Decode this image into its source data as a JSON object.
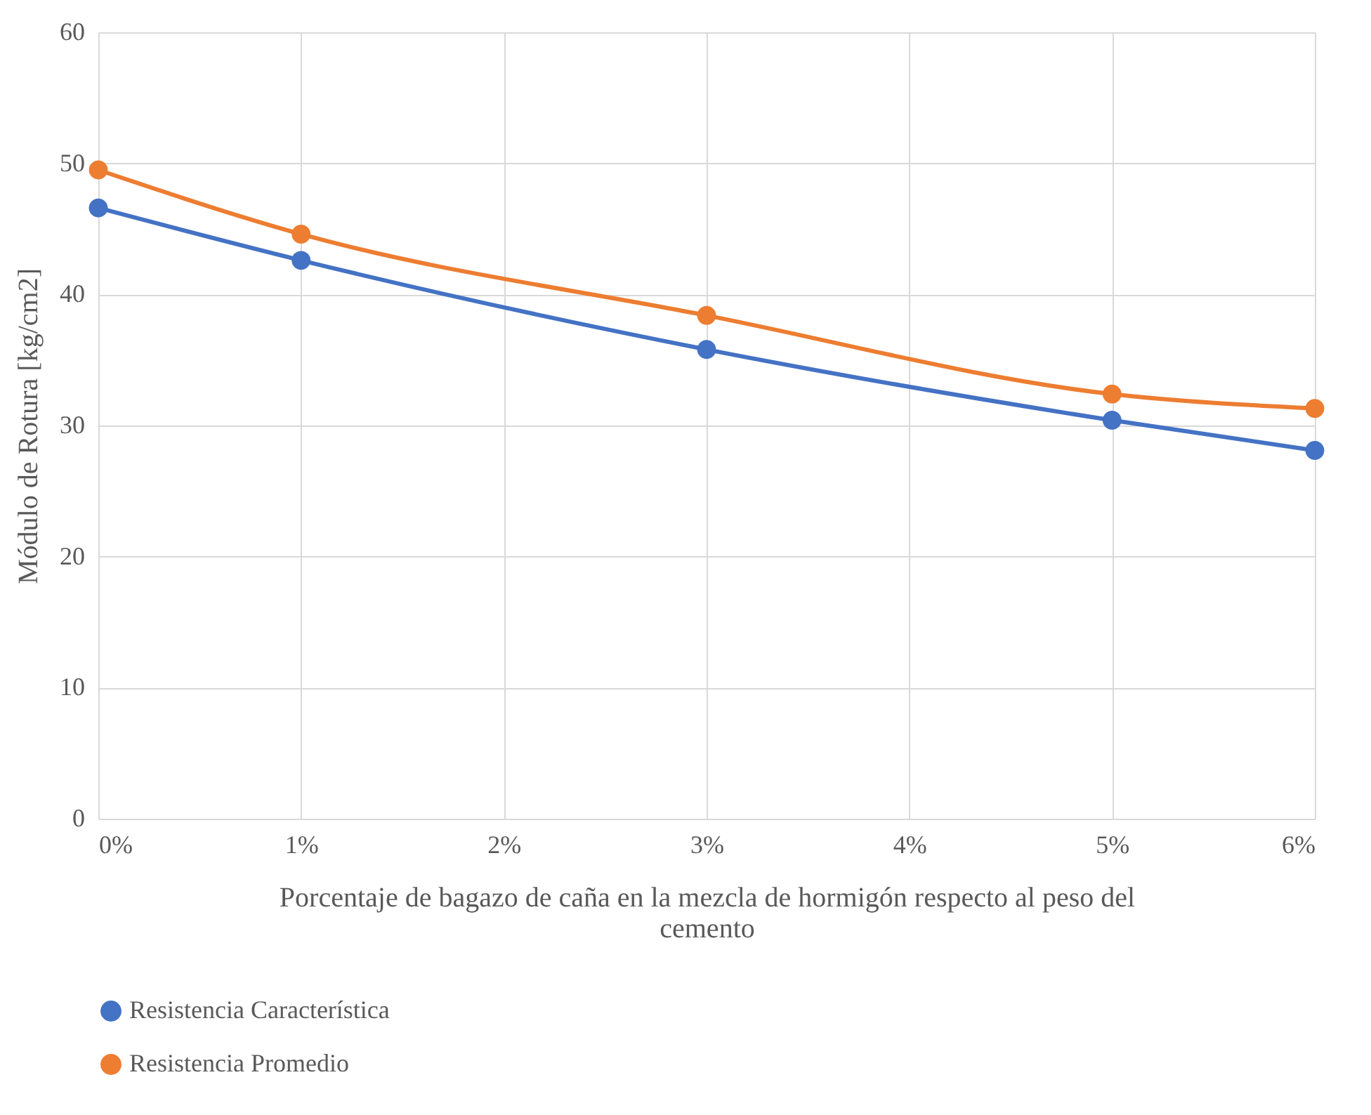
{
  "chart_data": {
    "type": "line",
    "xlabel": "Porcentaje de bagazo de caña en la mezcla de hormigón respecto al peso del cemento",
    "ylabel": "Módulo de Rotura [kg/cm2]",
    "x": [
      0,
      1,
      3,
      5,
      6
    ],
    "series": [
      {
        "name": "Resistencia Característica",
        "color": "#4472c4",
        "values": [
          46.6,
          42.6,
          35.8,
          30.4,
          28.1
        ]
      },
      {
        "name": "Resistencia Promedio",
        "color": "#ed7d31",
        "values": [
          49.5,
          44.6,
          38.4,
          32.4,
          31.3
        ]
      }
    ],
    "xlim": [
      0,
      6
    ],
    "xticks": [
      {
        "value": 0,
        "label": "0%"
      },
      {
        "value": 1,
        "label": "1%"
      },
      {
        "value": 2,
        "label": "2%"
      },
      {
        "value": 3,
        "label": "3%"
      },
      {
        "value": 4,
        "label": "4%"
      },
      {
        "value": 5,
        "label": "5%"
      },
      {
        "value": 6,
        "label": "6%"
      }
    ],
    "ylim": [
      0,
      60
    ],
    "yticks": [
      0,
      10,
      20,
      30,
      40,
      50,
      60
    ],
    "grid": true,
    "legend": "bottom",
    "marker": "circle",
    "line_style": "solid"
  }
}
